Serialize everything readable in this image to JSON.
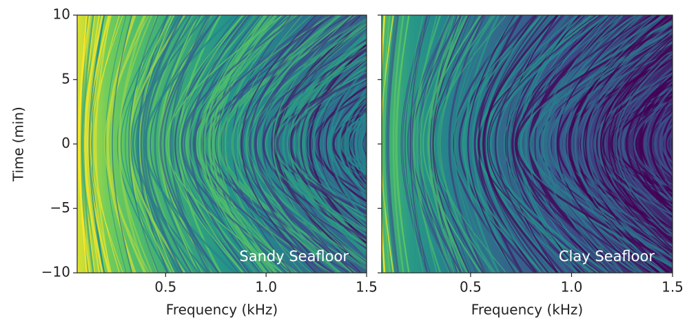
{
  "chart_data": [
    {
      "type": "heatmap",
      "xlabel": "Frequency (kHz)",
      "ylabel": "Time (min)",
      "annotation": "Sandy Seafloor",
      "xlim": [
        0.06,
        1.5
      ],
      "ylim": [
        -10,
        10
      ],
      "xticks": [
        0.5,
        {
          "value": 1,
          "label": "1.0"
        },
        1.5
      ],
      "yticks": [
        {
          "value": -10,
          "label": "−10"
        },
        {
          "value": -5,
          "label": "−5"
        },
        0,
        5,
        10
      ]
    },
    {
      "type": "heatmap",
      "xlabel": "Frequency (kHz)",
      "annotation": "Clay Seafloor",
      "xlim": [
        0.06,
        1.5
      ],
      "ylim": [
        -10,
        10
      ],
      "xticks": [
        0.5,
        {
          "value": 1,
          "label": "1.0"
        },
        1.5
      ],
      "yticks": [
        -10,
        -5,
        0,
        5,
        10
      ]
    }
  ]
}
